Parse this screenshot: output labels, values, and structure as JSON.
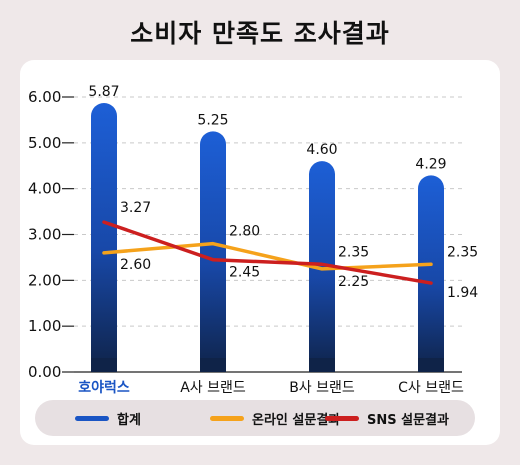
{
  "chart_data": {
    "type": "bar",
    "title": "소비자 만족도 조사결과",
    "categories": [
      "호야럭스",
      "A사 브랜드",
      "B사 브랜드",
      "C사 브랜드"
    ],
    "highlight_category": "호야럭스",
    "ylim": [
      0,
      6
    ],
    "yticks": [
      "0.00",
      "1.00",
      "2.00",
      "3.00",
      "4.00",
      "5.00",
      "6.00"
    ],
    "grid": true,
    "legend_position": "bottom",
    "series": [
      {
        "name": "합계",
        "kind": "bar",
        "values": [
          5.87,
          5.25,
          4.6,
          4.29
        ],
        "labels": [
          "5.87",
          "5.25",
          "4.60",
          "4.29"
        ],
        "color": "#1a55c4"
      },
      {
        "name": "온라인 설문결과",
        "kind": "line",
        "values": [
          2.6,
          2.8,
          2.25,
          2.35
        ],
        "labels": [
          "2.60",
          "2.80",
          "2.25",
          "2.35"
        ],
        "color": "#f5a21b"
      },
      {
        "name": "SNS 설문결과",
        "kind": "line",
        "values": [
          3.27,
          2.45,
          2.35,
          1.94
        ],
        "labels": [
          "3.27",
          "2.45",
          "2.35",
          "1.94"
        ],
        "color": "#cc1f1f"
      }
    ],
    "colors": {
      "highlight_label": "#1a55c4",
      "bar_dark": "#0f2348"
    }
  }
}
